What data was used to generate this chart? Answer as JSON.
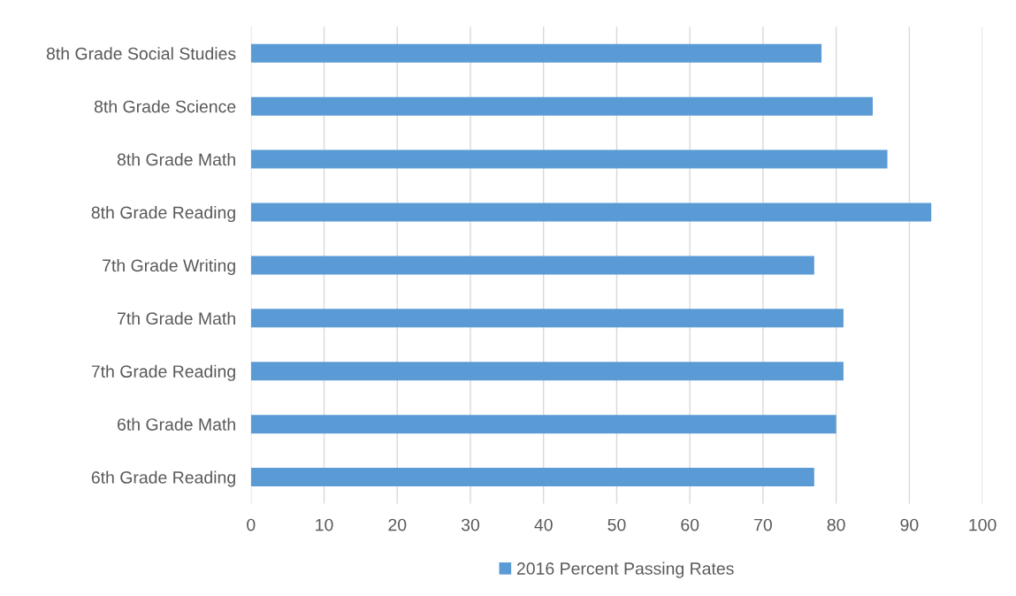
{
  "chart_data": {
    "type": "bar",
    "orientation": "horizontal",
    "categories": [
      "8th Grade Social Studies",
      "8th Grade Science",
      "8th Grade Math",
      "8th Grade Reading",
      "7th Grade Writing",
      "7th Grade Math",
      "7th Grade Reading",
      "6th Grade Math",
      "6th Grade Reading"
    ],
    "series": [
      {
        "name": "2016 Percent Passing Rates",
        "color": "#5b9bd5",
        "values": [
          78,
          85,
          87,
          93,
          77,
          81,
          81,
          80,
          77
        ]
      }
    ],
    "xlim": [
      0,
      100
    ],
    "xticks": [
      0,
      10,
      20,
      30,
      40,
      50,
      60,
      70,
      80,
      90,
      100
    ],
    "grid": "x",
    "legend": "bottom"
  }
}
